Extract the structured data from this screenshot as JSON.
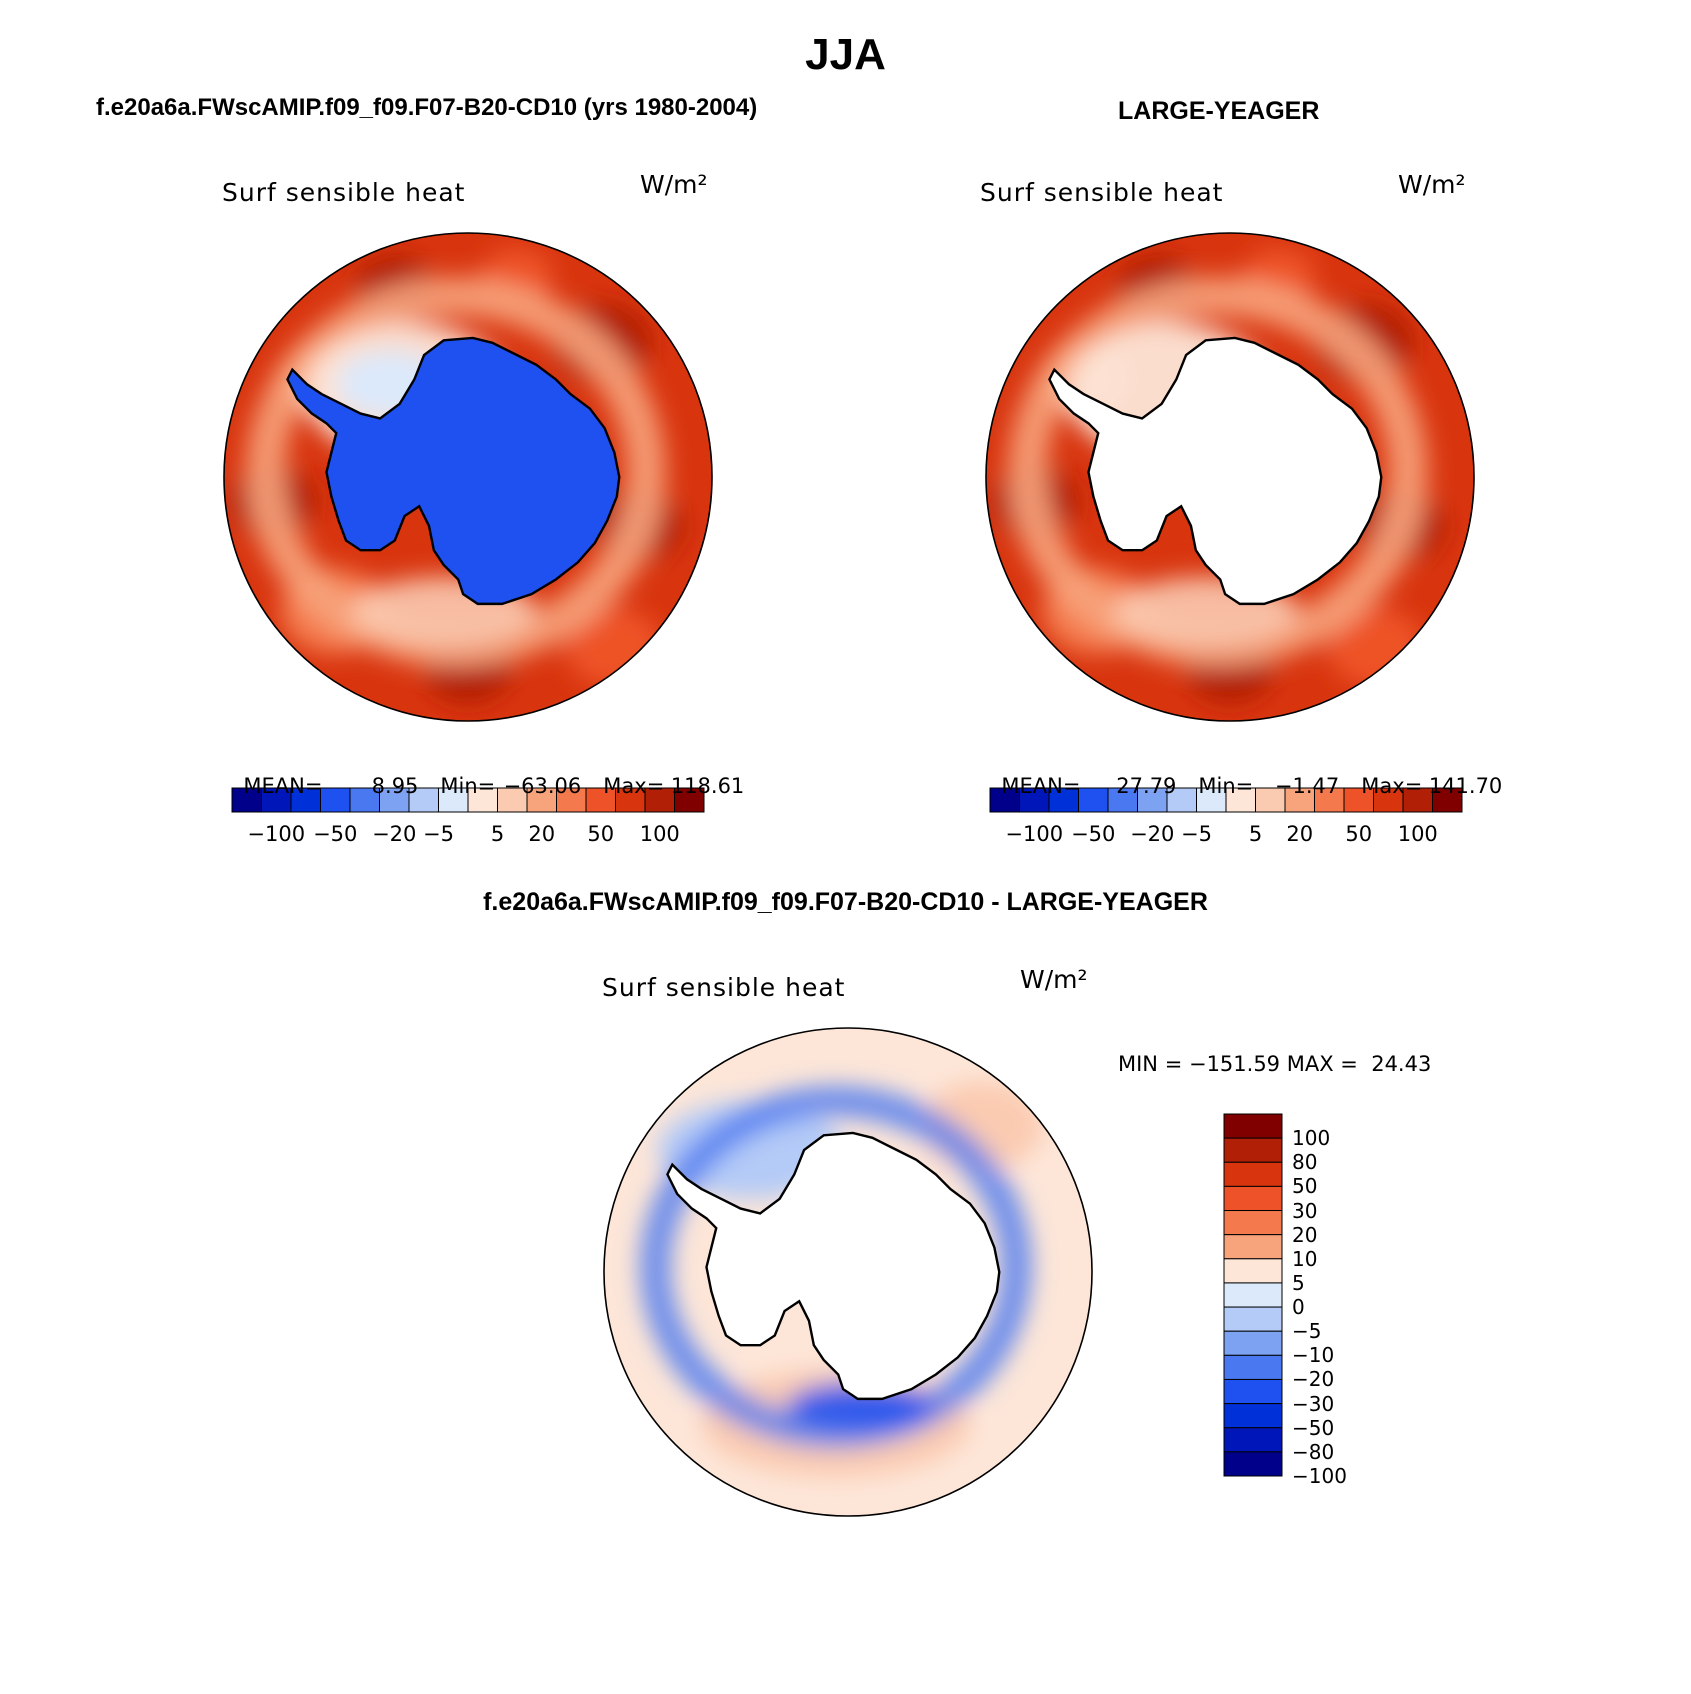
{
  "page_title": "JJA",
  "panels": [
    {
      "id": "model",
      "header": "f.e20a6a.FWscAMIP.f09_f09.F07-B20-CD10 (yrs 1980-2004)",
      "variable": "Surf sensible heat",
      "units": "W/m²",
      "stats": {
        "mean_label": "MEAN=",
        "mean": "8.95",
        "min_label": "Min=",
        "min": "−63.06",
        "max_label": "Max=",
        "max": "118.61"
      },
      "antarctica_fill": "blue"
    },
    {
      "id": "obs",
      "header": "LARGE-YEAGER",
      "variable": "Surf sensible heat",
      "units": "W/m²",
      "stats": {
        "mean_label": "MEAN=",
        "mean": "27.79",
        "min_label": "Min=",
        "min": "−1.47",
        "max_label": "Max=",
        "max": "141.70"
      },
      "antarctica_fill": "white"
    },
    {
      "id": "diff",
      "header": "f.e20a6a.FWscAMIP.f09_f09.F07-B20-CD10 - LARGE-YEAGER",
      "variable": "Surf sensible heat",
      "units": "W/m²",
      "stats_text": "MIN = −151.59 MAX =  24.43",
      "antarctica_fill": "white"
    }
  ],
  "colorbar_top": {
    "colors": [
      "#00008b",
      "#0016b8",
      "#0030d8",
      "#1f50f0",
      "#4a78f0",
      "#7ea2f2",
      "#b4cbf7",
      "#dbe9fb",
      "#fde6d8",
      "#fbcbb1",
      "#f7a47d",
      "#f47a4e",
      "#ee5228",
      "#d8350f",
      "#b01f06",
      "#800000"
    ],
    "tick_labels": [
      "−100",
      "−50",
      "−20",
      "−5",
      "5",
      "20",
      "50",
      "100"
    ]
  },
  "colorbar_diff": {
    "colors": [
      "#800000",
      "#b01f06",
      "#d8350f",
      "#ee5228",
      "#f47a4e",
      "#f7a47d",
      "#fde6d8",
      "#dbe9fb",
      "#b4cbf7",
      "#7ea2f2",
      "#4a78f0",
      "#1f50f0",
      "#0030d8",
      "#0016b8",
      "#00008b"
    ],
    "tick_labels": [
      "100",
      "80",
      "50",
      "30",
      "20",
      "10",
      "5",
      "0",
      "−5",
      "−10",
      "−20",
      "−30",
      "−50",
      "−80",
      "−100"
    ]
  }
}
